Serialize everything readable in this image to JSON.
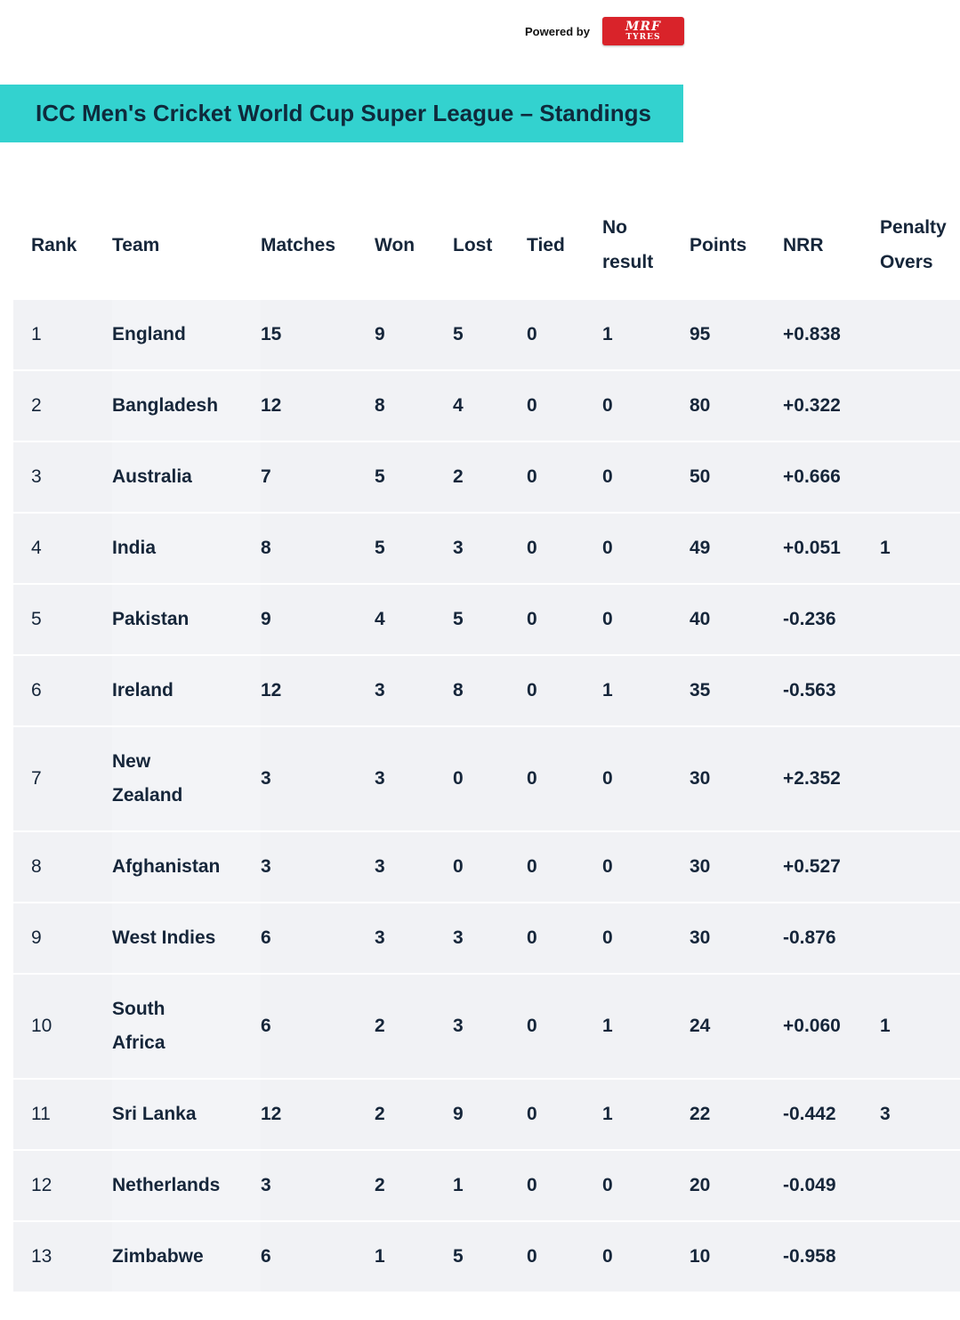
{
  "sponsor": {
    "text": "Powered by",
    "logo_line1": "MRF",
    "logo_line2": "TYRES"
  },
  "title": "ICC Men's Cricket World Cup Super League – Standings",
  "columns": {
    "rank": "Rank",
    "team": "Team",
    "matches": "Matches",
    "won": "Won",
    "lost": "Lost",
    "tied": "Tied",
    "no_result_1": "No",
    "no_result_2": "result",
    "points": "Points",
    "nrr": "NRR",
    "penalty_1": "Penalty",
    "penalty_2": "Overs"
  },
  "rows": [
    {
      "rank": "1",
      "team1": "England",
      "team2": "",
      "matches": "15",
      "won": "9",
      "lost": "5",
      "tied": "0",
      "nr": "1",
      "points": "95",
      "nrr": "+0.838",
      "penalty": ""
    },
    {
      "rank": "2",
      "team1": "Bangladesh",
      "team2": "",
      "matches": "12",
      "won": "8",
      "lost": "4",
      "tied": "0",
      "nr": "0",
      "points": "80",
      "nrr": "+0.322",
      "penalty": ""
    },
    {
      "rank": "3",
      "team1": "Australia",
      "team2": "",
      "matches": "7",
      "won": "5",
      "lost": "2",
      "tied": "0",
      "nr": "0",
      "points": "50",
      "nrr": "+0.666",
      "penalty": ""
    },
    {
      "rank": "4",
      "team1": "India",
      "team2": "",
      "matches": "8",
      "won": "5",
      "lost": "3",
      "tied": "0",
      "nr": "0",
      "points": "49",
      "nrr": "+0.051",
      "penalty": "1"
    },
    {
      "rank": "5",
      "team1": "Pakistan",
      "team2": "",
      "matches": "9",
      "won": "4",
      "lost": "5",
      "tied": "0",
      "nr": "0",
      "points": "40",
      "nrr": "-0.236",
      "penalty": ""
    },
    {
      "rank": "6",
      "team1": "Ireland",
      "team2": "",
      "matches": "12",
      "won": "3",
      "lost": "8",
      "tied": "0",
      "nr": "1",
      "points": "35",
      "nrr": "-0.563",
      "penalty": ""
    },
    {
      "rank": "7",
      "team1": "New",
      "team2": "Zealand",
      "matches": "3",
      "won": "3",
      "lost": "0",
      "tied": "0",
      "nr": "0",
      "points": "30",
      "nrr": "+2.352",
      "penalty": ""
    },
    {
      "rank": "8",
      "team1": "Afghanistan",
      "team2": "",
      "matches": "3",
      "won": "3",
      "lost": "0",
      "tied": "0",
      "nr": "0",
      "points": "30",
      "nrr": "+0.527",
      "penalty": ""
    },
    {
      "rank": "9",
      "team1": "West Indies",
      "team2": "",
      "matches": "6",
      "won": "3",
      "lost": "3",
      "tied": "0",
      "nr": "0",
      "points": "30",
      "nrr": "-0.876",
      "penalty": ""
    },
    {
      "rank": "10",
      "team1": "South",
      "team2": "Africa",
      "matches": "6",
      "won": "2",
      "lost": "3",
      "tied": "0",
      "nr": "1",
      "points": "24",
      "nrr": "+0.060",
      "penalty": "1"
    },
    {
      "rank": "11",
      "team1": "Sri Lanka",
      "team2": "",
      "matches": "12",
      "won": "2",
      "lost": "9",
      "tied": "0",
      "nr": "1",
      "points": "22",
      "nrr": "-0.442",
      "penalty": "3"
    },
    {
      "rank": "12",
      "team1": "Netherlands",
      "team2": "",
      "matches": "3",
      "won": "2",
      "lost": "1",
      "tied": "0",
      "nr": "0",
      "points": "20",
      "nrr": "-0.049",
      "penalty": ""
    },
    {
      "rank": "13",
      "team1": "Zimbabwe",
      "team2": "",
      "matches": "6",
      "won": "1",
      "lost": "5",
      "tied": "0",
      "nr": "0",
      "points": "10",
      "nrr": "-0.958",
      "penalty": ""
    }
  ],
  "colors": {
    "banner": "#33d2cf",
    "row_background": "#f1f2f5",
    "text": "#16263a",
    "logo_red": "#d9232a"
  }
}
